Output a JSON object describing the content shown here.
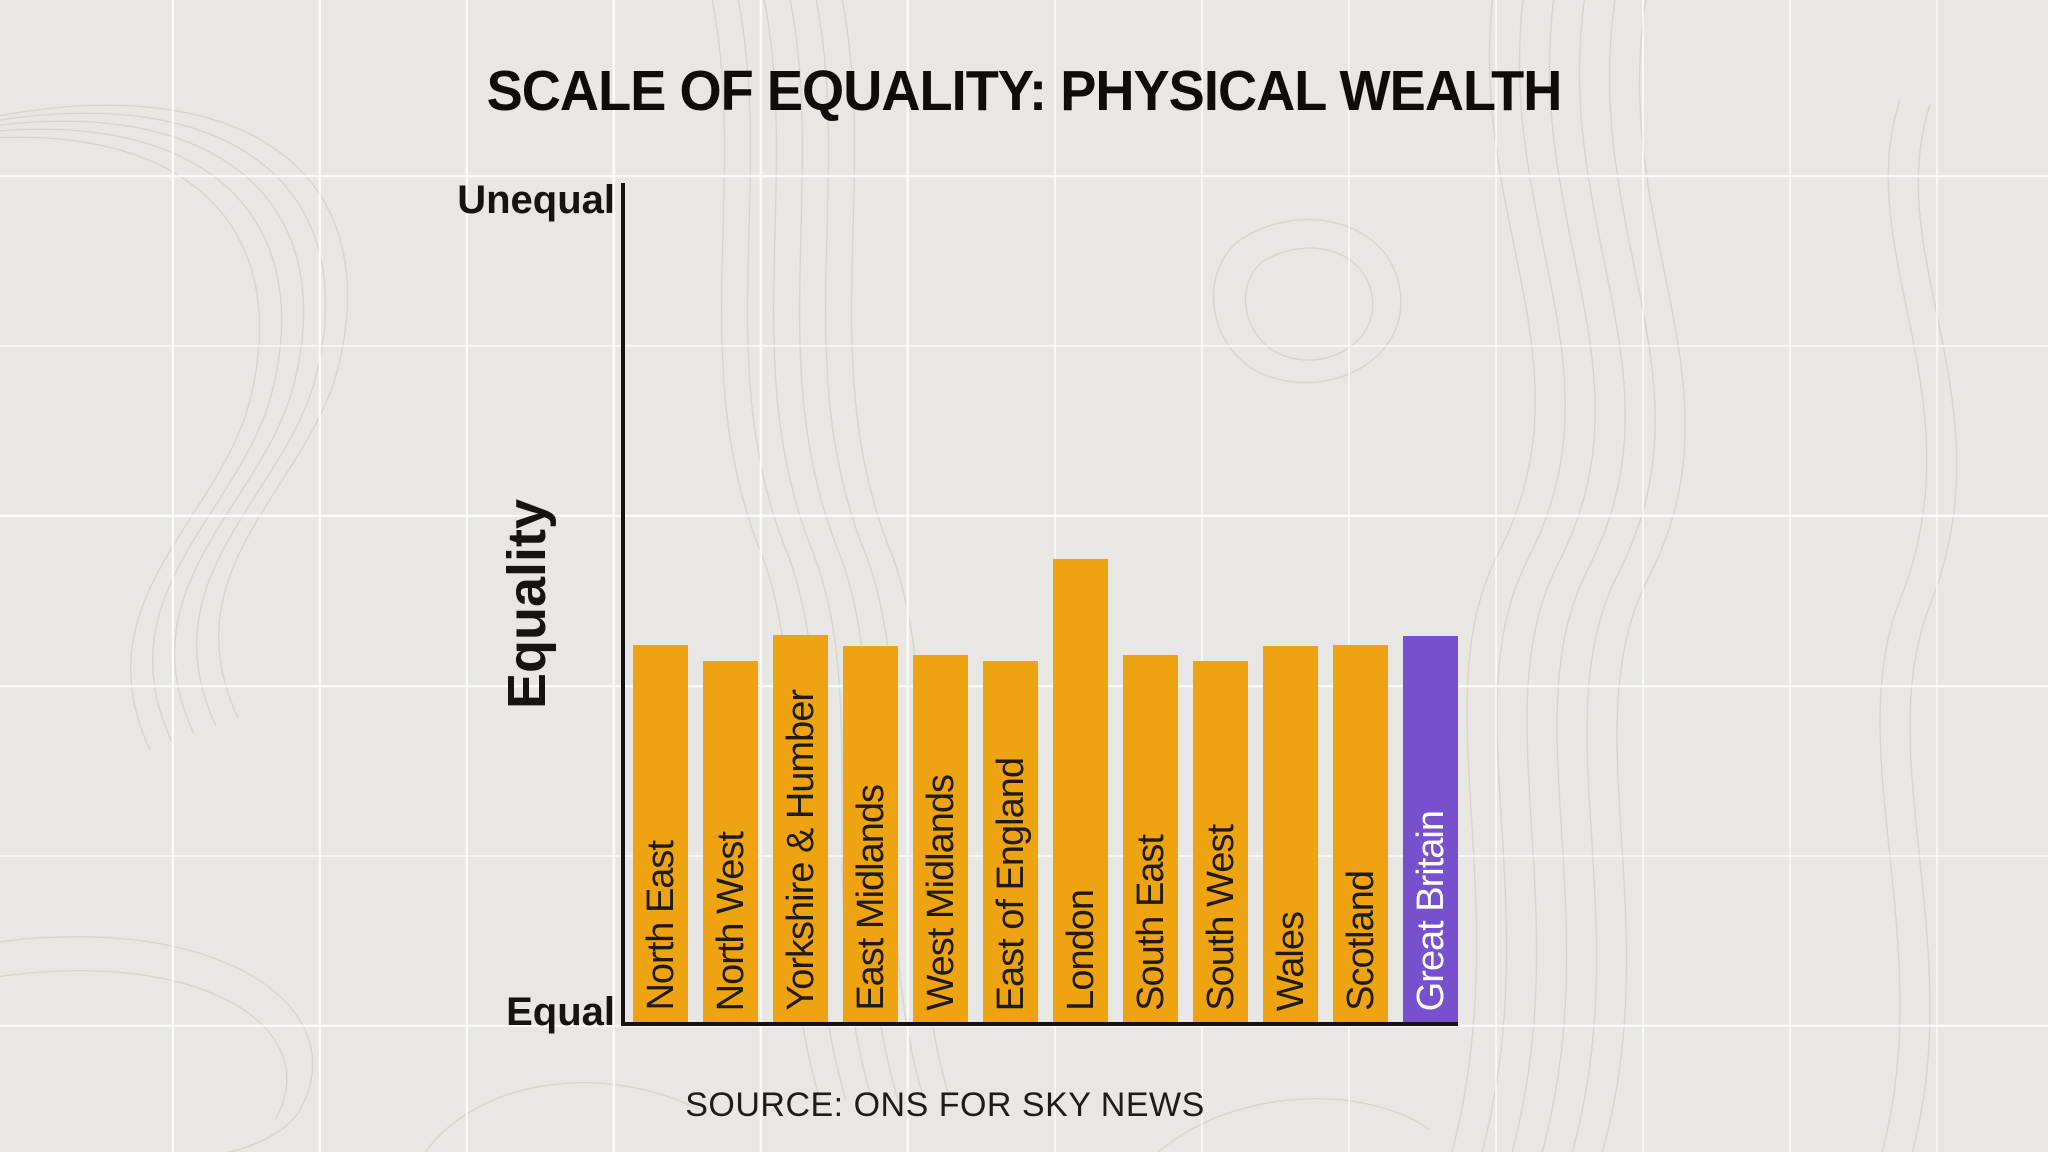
{
  "chart_data": {
    "type": "bar",
    "title": "SCALE OF EQUALITY: PHYSICAL WEALTH",
    "categories": [
      "North East",
      "North West",
      "Yorkshire & Humber",
      "East Midlands",
      "West Midlands",
      "East of England",
      "London",
      "South East",
      "South West",
      "Wales",
      "Scotland",
      "Great Britain"
    ],
    "values": [
      0.45,
      0.431,
      0.462,
      0.449,
      0.439,
      0.431,
      0.553,
      0.438,
      0.431,
      0.449,
      0.45,
      0.461
    ],
    "xlabel": "",
    "ylabel": "Equality",
    "y_axis": {
      "label": "Equality",
      "top_label": "Unequal",
      "bottom_label": "Equal"
    },
    "ylim": [
      0,
      1
    ],
    "grid": "faint white map grid on textured paper background",
    "legend": "none",
    "source": "SOURCE: ONS FOR SKY NEWS",
    "highlight_category": "Great Britain",
    "colors": {
      "bar": "#EEA410",
      "highlight_bar": "#7750CE",
      "bar_label_text": "#201b12",
      "highlight_label_text": "#FFFFFF",
      "axis": "#141312",
      "background": "#E9E7E3",
      "title_text": "#0E0D0C"
    }
  }
}
